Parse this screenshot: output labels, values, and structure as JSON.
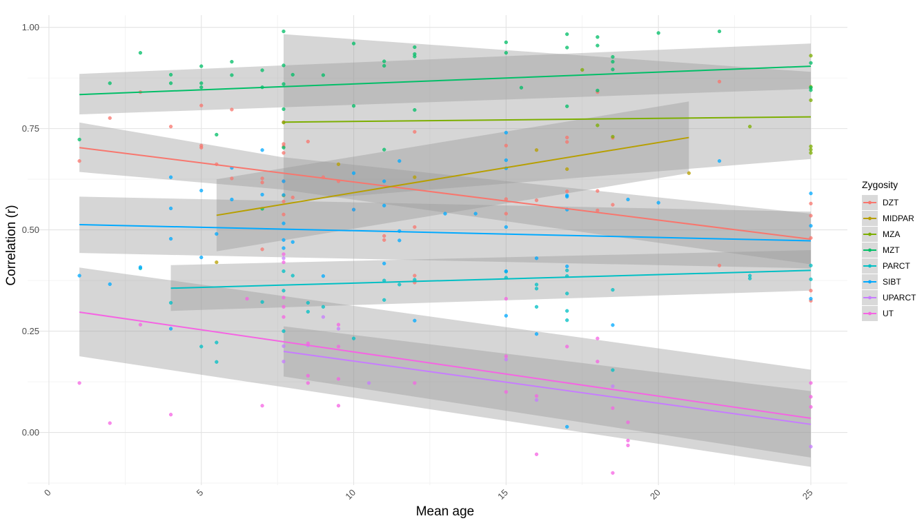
{
  "chart_data": {
    "type": "scatter",
    "xlabel": "Mean age",
    "ylabel": "Correlation (r)",
    "xlim": [
      -0.7,
      26.2
    ],
    "ylim": [
      -0.13,
      1.03
    ],
    "x_ticks": [
      0,
      5,
      10,
      15,
      20,
      25
    ],
    "x_tick_labels": [
      "0",
      "5",
      "10",
      "15",
      "20",
      "25"
    ],
    "y_ticks": [
      0.0,
      0.25,
      0.5,
      0.75,
      1.0
    ],
    "y_tick_labels": [
      "0.00",
      "0.25",
      "0.50",
      "0.75",
      "1.00"
    ],
    "grid": true,
    "legend": {
      "title": "Zygosity",
      "position": "right"
    },
    "series": [
      {
        "name": "DZT",
        "color": "#F8766D",
        "fit": {
          "x": [
            1,
            25
          ],
          "y": [
            0.703,
            0.477
          ]
        },
        "band": {
          "x": [
            1,
            7.6,
            25
          ],
          "lower": [
            0.643,
            0.6,
            0.415
          ],
          "upper": [
            0.765,
            0.68,
            0.54
          ]
        },
        "points": [
          [
            1,
            0.67
          ],
          [
            2,
            0.776
          ],
          [
            3,
            0.84
          ],
          [
            4,
            0.755
          ],
          [
            5,
            0.807
          ],
          [
            5,
            0.703
          ],
          [
            5,
            0.708
          ],
          [
            5.5,
            0.662
          ],
          [
            6,
            0.797
          ],
          [
            6,
            0.627
          ],
          [
            7,
            0.617
          ],
          [
            7,
            0.627
          ],
          [
            7,
            0.452
          ],
          [
            7.7,
            0.712
          ],
          [
            7.7,
            0.706
          ],
          [
            7.7,
            0.69
          ],
          [
            7.7,
            0.766
          ],
          [
            7.7,
            0.62
          ],
          [
            7.7,
            0.57
          ],
          [
            7.7,
            0.538
          ],
          [
            8,
            0.58
          ],
          [
            8.5,
            0.718
          ],
          [
            9,
            0.63
          ],
          [
            9.5,
            0.62
          ],
          [
            10,
            0.55
          ],
          [
            11,
            0.485
          ],
          [
            11,
            0.475
          ],
          [
            12,
            0.742
          ],
          [
            12,
            0.507
          ],
          [
            12,
            0.387
          ],
          [
            12,
            0.37
          ],
          [
            15,
            0.708
          ],
          [
            15,
            0.54
          ],
          [
            15,
            0.576
          ],
          [
            16,
            0.573
          ],
          [
            17,
            0.728
          ],
          [
            17,
            0.717
          ],
          [
            17,
            0.595
          ],
          [
            18,
            0.84
          ],
          [
            18,
            0.596
          ],
          [
            18,
            0.548
          ],
          [
            18.5,
            0.727
          ],
          [
            18.5,
            0.562
          ],
          [
            22,
            0.866
          ],
          [
            22,
            0.412
          ],
          [
            25,
            0.565
          ],
          [
            25,
            0.535
          ],
          [
            25,
            0.48
          ],
          [
            25,
            0.35
          ],
          [
            25,
            0.325
          ]
        ]
      },
      {
        "name": "MIDPAR",
        "color": "#B79F00",
        "fit": {
          "x": [
            5.5,
            21
          ],
          "y": [
            0.536,
            0.728
          ]
        },
        "band": {
          "x": [
            5.5,
            21
          ],
          "lower": [
            0.447,
            0.64
          ],
          "upper": [
            0.625,
            0.817
          ]
        },
        "points": [
          [
            5.5,
            0.42
          ],
          [
            7.7,
            0.585
          ],
          [
            9.5,
            0.662
          ],
          [
            12,
            0.63
          ],
          [
            16,
            0.697
          ],
          [
            17,
            0.65
          ],
          [
            21,
            0.64
          ]
        ]
      },
      {
        "name": "MZA",
        "color": "#7CAE00",
        "fit": {
          "x": [
            7.7,
            25
          ],
          "y": [
            0.766,
            0.779
          ]
        },
        "band": {
          "x": [
            7.7,
            25
          ],
          "lower": [
            0.57,
            0.675
          ],
          "upper": [
            0.983,
            0.89
          ]
        },
        "points": [
          [
            7.7,
            0.765
          ],
          [
            17.5,
            0.895
          ],
          [
            18,
            0.758
          ],
          [
            18.5,
            0.73
          ],
          [
            23,
            0.755
          ],
          [
            25,
            0.93
          ],
          [
            25,
            0.853
          ],
          [
            25,
            0.82
          ],
          [
            25,
            0.706
          ],
          [
            25,
            0.698
          ],
          [
            25,
            0.69
          ]
        ]
      },
      {
        "name": "MZT",
        "color": "#00BE67",
        "fit": {
          "x": [
            1,
            25
          ],
          "y": [
            0.834,
            0.904
          ]
        },
        "band": {
          "x": [
            1,
            25
          ],
          "lower": [
            0.785,
            0.848
          ],
          "upper": [
            0.885,
            0.96
          ]
        },
        "points": [
          [
            1,
            0.723
          ],
          [
            2,
            0.862
          ],
          [
            3,
            0.937
          ],
          [
            4,
            0.883
          ],
          [
            4,
            0.862
          ],
          [
            5,
            0.904
          ],
          [
            5,
            0.862
          ],
          [
            5,
            0.852
          ],
          [
            5.5,
            0.735
          ],
          [
            6,
            0.915
          ],
          [
            6,
            0.882
          ],
          [
            7,
            0.894
          ],
          [
            7,
            0.852
          ],
          [
            7,
            0.552
          ],
          [
            7.7,
            0.99
          ],
          [
            7.7,
            0.906
          ],
          [
            7.7,
            0.86
          ],
          [
            7.7,
            0.798
          ],
          [
            7.7,
            0.703
          ],
          [
            8,
            0.883
          ],
          [
            9,
            0.882
          ],
          [
            10,
            0.96
          ],
          [
            10,
            0.806
          ],
          [
            11,
            0.916
          ],
          [
            11,
            0.905
          ],
          [
            11,
            0.698
          ],
          [
            12,
            0.951
          ],
          [
            12,
            0.934
          ],
          [
            12,
            0.928
          ],
          [
            12,
            0.796
          ],
          [
            15,
            0.963
          ],
          [
            15,
            0.937
          ],
          [
            15.5,
            0.851
          ],
          [
            17,
            0.983
          ],
          [
            17,
            0.95
          ],
          [
            17,
            0.805
          ],
          [
            18,
            0.976
          ],
          [
            18,
            0.955
          ],
          [
            18,
            0.844
          ],
          [
            18.5,
            0.927
          ],
          [
            18.5,
            0.915
          ],
          [
            18.5,
            0.896
          ],
          [
            20,
            0.986
          ],
          [
            22,
            0.99
          ],
          [
            25,
            0.912
          ],
          [
            25,
            0.851
          ],
          [
            25,
            0.845
          ]
        ]
      },
      {
        "name": "PARCT",
        "color": "#00BFC4",
        "fit": {
          "x": [
            4,
            25
          ],
          "y": [
            0.356,
            0.4
          ]
        },
        "band": {
          "x": [
            4,
            25
          ],
          "lower": [
            0.3,
            0.35
          ],
          "upper": [
            0.413,
            0.45
          ]
        },
        "points": [
          [
            3,
            0.405
          ],
          [
            4,
            0.32
          ],
          [
            5,
            0.212
          ],
          [
            5.5,
            0.222
          ],
          [
            5.5,
            0.174
          ],
          [
            7,
            0.322
          ],
          [
            7.7,
            0.398
          ],
          [
            7.7,
            0.35
          ],
          [
            7.7,
            0.25
          ],
          [
            8,
            0.387
          ],
          [
            8.5,
            0.32
          ],
          [
            8.5,
            0.298
          ],
          [
            9,
            0.31
          ],
          [
            10,
            0.232
          ],
          [
            11,
            0.375
          ],
          [
            11,
            0.327
          ],
          [
            11.5,
            0.365
          ],
          [
            12,
            0.377
          ],
          [
            15,
            0.397
          ],
          [
            15,
            0.382
          ],
          [
            16,
            0.365
          ],
          [
            16,
            0.355
          ],
          [
            16,
            0.31
          ],
          [
            17,
            0.4
          ],
          [
            17,
            0.386
          ],
          [
            17,
            0.343
          ],
          [
            17,
            0.3
          ],
          [
            17,
            0.277
          ],
          [
            18.5,
            0.352
          ],
          [
            18.5,
            0.154
          ],
          [
            23,
            0.387
          ],
          [
            23,
            0.38
          ],
          [
            25,
            0.412
          ],
          [
            25,
            0.378
          ]
        ]
      },
      {
        "name": "SIBT",
        "color": "#00A9FF",
        "fit": {
          "x": [
            1,
            25
          ],
          "y": [
            0.513,
            0.473
          ]
        },
        "band": {
          "x": [
            1,
            25
          ],
          "lower": [
            0.443,
            0.405
          ],
          "upper": [
            0.582,
            0.545
          ]
        },
        "points": [
          [
            1,
            0.387
          ],
          [
            2,
            0.366
          ],
          [
            3,
            0.408
          ],
          [
            4,
            0.63
          ],
          [
            4,
            0.553
          ],
          [
            4,
            0.478
          ],
          [
            4,
            0.256
          ],
          [
            5,
            0.597
          ],
          [
            5,
            0.432
          ],
          [
            5.5,
            0.49
          ],
          [
            6,
            0.575
          ],
          [
            6,
            0.653
          ],
          [
            7,
            0.697
          ],
          [
            7,
            0.587
          ],
          [
            7.7,
            0.62
          ],
          [
            7.7,
            0.586
          ],
          [
            7.7,
            0.516
          ],
          [
            7.7,
            0.475
          ],
          [
            7.7,
            0.455
          ],
          [
            8,
            0.47
          ],
          [
            9,
            0.386
          ],
          [
            10,
            0.64
          ],
          [
            10,
            0.55
          ],
          [
            11,
            0.417
          ],
          [
            11,
            0.56
          ],
          [
            11,
            0.62
          ],
          [
            11.5,
            0.67
          ],
          [
            11.5,
            0.474
          ],
          [
            11.5,
            0.497
          ],
          [
            12,
            0.276
          ],
          [
            13,
            0.54
          ],
          [
            14,
            0.54
          ],
          [
            15,
            0.74
          ],
          [
            15,
            0.672
          ],
          [
            15,
            0.652
          ],
          [
            15,
            0.507
          ],
          [
            15,
            0.398
          ],
          [
            15,
            0.288
          ],
          [
            16,
            0.43
          ],
          [
            16,
            0.243
          ],
          [
            17,
            0.585
          ],
          [
            17,
            0.582
          ],
          [
            17,
            0.55
          ],
          [
            17,
            0.41
          ],
          [
            17,
            0.014
          ],
          [
            18.5,
            0.265
          ],
          [
            19,
            0.575
          ],
          [
            20,
            0.567
          ],
          [
            22,
            0.67
          ],
          [
            25,
            0.59
          ],
          [
            25,
            0.51
          ],
          [
            25,
            0.33
          ]
        ]
      },
      {
        "name": "UPARCT",
        "color": "#C77CFF",
        "fit": {
          "x": [
            7.7,
            25
          ],
          "y": [
            0.2,
            0.02
          ]
        },
        "band": {
          "x": [
            7.7,
            25
          ],
          "lower": [
            0.138,
            -0.062
          ],
          "upper": [
            0.262,
            0.102
          ]
        },
        "points": [
          [
            7.7,
            0.43
          ],
          [
            7.7,
            0.213
          ],
          [
            7.7,
            0.175
          ],
          [
            8.5,
            0.215
          ],
          [
            9,
            0.285
          ],
          [
            9.5,
            0.256
          ],
          [
            10.5,
            0.122
          ],
          [
            15,
            0.18
          ],
          [
            16,
            0.08
          ],
          [
            18.5,
            0.114
          ],
          [
            25,
            -0.035
          ]
        ]
      },
      {
        "name": "UT",
        "color": "#F564E3",
        "fit": {
          "x": [
            1,
            25
          ],
          "y": [
            0.297,
            0.035
          ]
        },
        "band": {
          "x": [
            1,
            25
          ],
          "lower": [
            0.188,
            -0.085
          ],
          "upper": [
            0.407,
            0.155
          ]
        },
        "points": [
          [
            1,
            0.122
          ],
          [
            2,
            0.023
          ],
          [
            3,
            0.266
          ],
          [
            4,
            0.044
          ],
          [
            6.5,
            0.33
          ],
          [
            7,
            0.066
          ],
          [
            7.7,
            0.44
          ],
          [
            7.7,
            0.42
          ],
          [
            7.7,
            0.31
          ],
          [
            7.7,
            0.285
          ],
          [
            7.7,
            0.333
          ],
          [
            8.5,
            0.14
          ],
          [
            8.5,
            0.122
          ],
          [
            8.5,
            0.22
          ],
          [
            9.5,
            0.266
          ],
          [
            9.5,
            0.212
          ],
          [
            9.5,
            0.132
          ],
          [
            9.5,
            0.066
          ],
          [
            12,
            0.122
          ],
          [
            15,
            0.33
          ],
          [
            15,
            0.188
          ],
          [
            15,
            0.1
          ],
          [
            16,
            0.09
          ],
          [
            16,
            -0.054
          ],
          [
            17,
            0.212
          ],
          [
            18,
            0.232
          ],
          [
            18,
            0.175
          ],
          [
            18.5,
            0.06
          ],
          [
            18.5,
            -0.1
          ],
          [
            19,
            0.025
          ],
          [
            19,
            -0.02
          ],
          [
            19,
            -0.032
          ],
          [
            25,
            0.122
          ],
          [
            25,
            0.088
          ],
          [
            25,
            0.063
          ]
        ]
      }
    ]
  }
}
